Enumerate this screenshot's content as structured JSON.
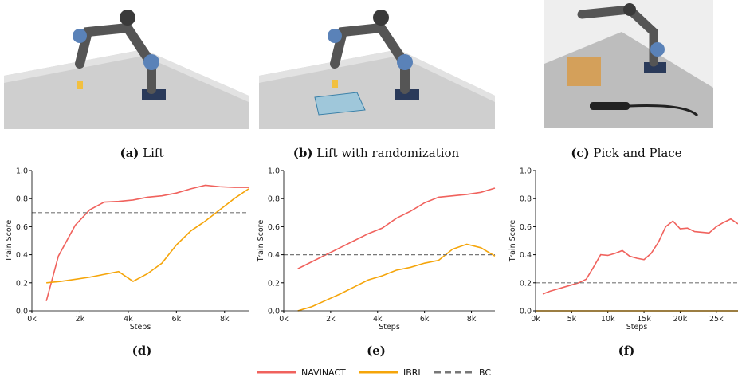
{
  "captions": [
    {
      "tag": "(a)",
      "text": "Lift"
    },
    {
      "tag": "(b)",
      "text": "Lift with randomization"
    },
    {
      "tag": "(c)",
      "text": "Pick and Place"
    }
  ],
  "chart_data": [
    {
      "type": "line",
      "label": "(d)",
      "xlabel": "Steps",
      "ylabel": "Train Score",
      "xlim": [
        0,
        9000
      ],
      "xticks": [
        {
          "value": 0,
          "label": "0k"
        },
        {
          "value": 2000,
          "label": "2k"
        },
        {
          "value": 4000,
          "label": "4k"
        },
        {
          "value": 6000,
          "label": "6k"
        },
        {
          "value": 8000,
          "label": "8k"
        }
      ],
      "ylim": [
        0,
        1
      ],
      "yticks": [
        {
          "value": 0,
          "label": "0.0"
        },
        0.2,
        0.4,
        0.6,
        0.8,
        {
          "value": 1,
          "label": "1.0"
        }
      ],
      "series": [
        {
          "name": "NAVINACT",
          "color": "#f0625d",
          "x": [
            600,
            1100,
            1800,
            2400,
            3000,
            3600,
            4200,
            4800,
            5400,
            6000,
            6600,
            7200,
            7800,
            8400,
            9000
          ],
          "values": [
            0.07,
            0.39,
            0.61,
            0.72,
            0.775,
            0.78,
            0.79,
            0.81,
            0.82,
            0.84,
            0.87,
            0.895,
            0.885,
            0.88,
            0.88
          ]
        },
        {
          "name": "IBRL",
          "color": "#f5a50a",
          "x": [
            600,
            1200,
            1800,
            2400,
            3000,
            3600,
            4200,
            4800,
            5400,
            6000,
            6600,
            7200,
            7800,
            8400,
            9000
          ],
          "values": [
            0.2,
            0.21,
            0.225,
            0.24,
            0.26,
            0.28,
            0.21,
            0.265,
            0.34,
            0.47,
            0.57,
            0.64,
            0.72,
            0.8,
            0.87
          ]
        },
        {
          "name": "BC",
          "color": "#777777",
          "dashed": true,
          "x": [
            0,
            9000
          ],
          "values": [
            0.7,
            0.7
          ]
        }
      ]
    },
    {
      "type": "line",
      "label": "(e)",
      "xlabel": "Steps",
      "ylabel": "Train Score",
      "xlim": [
        0,
        9000
      ],
      "xticks": [
        {
          "value": 0,
          "label": "0k"
        },
        {
          "value": 2000,
          "label": "2k"
        },
        {
          "value": 4000,
          "label": "4k"
        },
        {
          "value": 6000,
          "label": "6k"
        },
        {
          "value": 8000,
          "label": "8k"
        }
      ],
      "ylim": [
        0,
        1
      ],
      "yticks": [
        {
          "value": 0,
          "label": "0.0"
        },
        0.2,
        0.4,
        0.6,
        0.8,
        {
          "value": 1,
          "label": "1.0"
        }
      ],
      "series": [
        {
          "color": "#f0625d",
          "x": [
            600,
            1200,
            1800,
            2400,
            3000,
            3600,
            4200,
            4800,
            5400,
            6000,
            6600,
            7200,
            7800,
            8400,
            9000
          ],
          "values": [
            0.3,
            0.35,
            0.4,
            0.45,
            0.5,
            0.55,
            0.59,
            0.66,
            0.71,
            0.77,
            0.81,
            0.82,
            0.83,
            0.845,
            0.875
          ]
        },
        {
          "color": "#f5a50a",
          "x": [
            600,
            1200,
            1800,
            2400,
            3000,
            3600,
            4200,
            4800,
            5400,
            6000,
            6600,
            7200,
            7800,
            8400,
            9000
          ],
          "values": [
            0,
            0.03,
            0.075,
            0.12,
            0.17,
            0.22,
            0.25,
            0.29,
            0.31,
            0.34,
            0.36,
            0.44,
            0.475,
            0.45,
            0.39
          ]
        },
        {
          "color": "#777777",
          "dashed": true,
          "x": [
            0,
            9000
          ],
          "values": [
            0.4,
            0.4
          ]
        }
      ]
    },
    {
      "type": "line",
      "label": "(f)",
      "xlabel": "Steps",
      "ylabel": "Train Score",
      "xlim": [
        0,
        28000
      ],
      "xticks": [
        {
          "value": 0,
          "label": "0k"
        },
        {
          "value": 5000,
          "label": "5k"
        },
        {
          "value": 10000,
          "label": "10k"
        },
        {
          "value": 15000,
          "label": "15k"
        },
        {
          "value": 20000,
          "label": "20k"
        },
        {
          "value": 25000,
          "label": "25k"
        }
      ],
      "ylim": [
        0,
        1
      ],
      "yticks": [
        {
          "value": 0,
          "label": "0.0"
        },
        0.2,
        0.4,
        0.6,
        0.8,
        {
          "value": 1,
          "label": "1.0"
        }
      ],
      "series": [
        {
          "color": "#f0625d",
          "x": [
            1000,
            2000,
            3000,
            4000,
            5000,
            6000,
            7000,
            8000,
            9000,
            10000,
            11000,
            12000,
            13000,
            14000,
            15000,
            16000,
            17000,
            18000,
            19000,
            20000,
            21000,
            22000,
            23000,
            24000,
            25000,
            26000,
            27000,
            28000
          ],
          "values": [
            0.12,
            0.14,
            0.155,
            0.17,
            0.185,
            0.2,
            0.225,
            0.31,
            0.4,
            0.395,
            0.41,
            0.43,
            0.39,
            0.375,
            0.365,
            0.41,
            0.49,
            0.6,
            0.64,
            0.585,
            0.59,
            0.565,
            0.56,
            0.555,
            0.6,
            0.63,
            0.655,
            0.62
          ]
        },
        {
          "color": "#f5a50a",
          "x": [
            0,
            28000
          ],
          "values": [
            0,
            0
          ]
        },
        {
          "color": "#777777",
          "dashed": true,
          "x": [
            0,
            28000
          ],
          "values": [
            0.2,
            0.2
          ]
        }
      ]
    }
  ]
}
